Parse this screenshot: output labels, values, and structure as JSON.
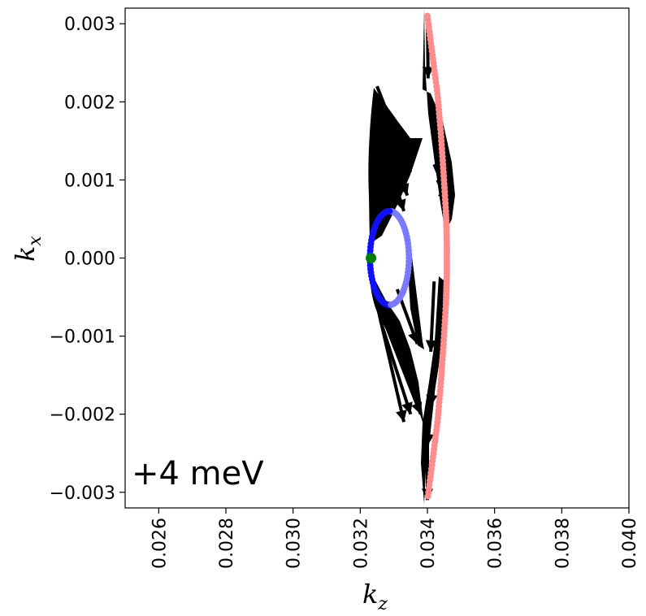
{
  "chart_data": {
    "type": "scatter",
    "xlabel_base": "k",
    "xlabel_sub": "z",
    "ylabel_base": "k",
    "ylabel_sub": "x",
    "xlim": [
      0.025,
      0.04
    ],
    "ylim": [
      -0.0032,
      0.0032
    ],
    "xticks": [
      {
        "value": 0.026,
        "label": "0.026"
      },
      {
        "value": 0.028,
        "label": "0.028"
      },
      {
        "value": 0.03,
        "label": "0.030"
      },
      {
        "value": 0.032,
        "label": "0.032"
      },
      {
        "value": 0.034,
        "label": "0.034"
      },
      {
        "value": 0.036,
        "label": "0.036"
      },
      {
        "value": 0.038,
        "label": "0.038"
      },
      {
        "value": 0.04,
        "label": "0.040"
      }
    ],
    "yticks": [
      {
        "value": 0.003,
        "label": "0.003"
      },
      {
        "value": 0.002,
        "label": "0.002"
      },
      {
        "value": 0.001,
        "label": "0.001"
      },
      {
        "value": 0.0,
        "label": "0.000"
      },
      {
        "value": -0.001,
        "label": "−0.001"
      },
      {
        "value": -0.002,
        "label": "−0.002"
      },
      {
        "value": -0.003,
        "label": "−0.003"
      }
    ],
    "annotation": "+4 meV",
    "grid": false,
    "colors": {
      "blue_dark": "#1010ff",
      "blue_light": "#7a7aff",
      "pink": "#ff8c8c",
      "green": "#008000",
      "arrow": "#000000"
    },
    "series": [
      {
        "kind": "ellipse-points",
        "color_key": "blue_dark",
        "center": [
          0.03287,
          0.0
        ],
        "semi_axes": [
          0.00058,
          0.0006
        ],
        "x": [],
        "y": []
      },
      {
        "kind": "curve-points",
        "color_key": "pink",
        "x": [
          0.034,
          0.03415,
          0.0343,
          0.0344,
          0.03448,
          0.03455,
          0.03458,
          0.03458,
          0.03455,
          0.03448,
          0.0344,
          0.0343,
          0.03415,
          0.034
        ],
        "y": [
          0.0031,
          0.0026,
          0.0021,
          0.0016,
          0.0011,
          0.0006,
          0.0002,
          -0.0002,
          -0.0006,
          -0.0011,
          -0.0016,
          -0.0021,
          -0.0026,
          -0.0031
        ]
      },
      {
        "kind": "point",
        "color_key": "green",
        "x": [
          0.03232
        ],
        "y": [
          0.0
        ]
      }
    ],
    "arrows": [
      {
        "x": 0.0325,
        "y": 0.0022,
        "dx": 0.001,
        "dy": -0.0011
      },
      {
        "x": 0.0326,
        "y": 0.0018,
        "dx": 0.0008,
        "dy": -0.001
      },
      {
        "x": 0.0327,
        "y": 0.0014,
        "dx": 0.0006,
        "dy": -0.0008
      },
      {
        "x": 0.0324,
        "y": 0.001,
        "dx": 0.0003,
        "dy": -0.0004
      },
      {
        "x": 0.0325,
        "y": -0.0006,
        "dx": 0.0008,
        "dy": -0.0015
      },
      {
        "x": 0.0326,
        "y": -0.0008,
        "dx": 0.0009,
        "dy": -0.0012
      },
      {
        "x": 0.0328,
        "y": -0.0009,
        "dx": 0.001,
        "dy": -0.0011
      },
      {
        "x": 0.0331,
        "y": -0.0004,
        "dx": 0.0006,
        "dy": -0.0007
      },
      {
        "x": 0.034,
        "y": 0.0031,
        "dx": 2e-05,
        "dy": -0.0008
      },
      {
        "x": 0.0341,
        "y": 0.002,
        "dx": 0.0003,
        "dy": -0.0005
      },
      {
        "x": 0.0342,
        "y": 0.0012,
        "dx": 0.0004,
        "dy": -0.0004
      },
      {
        "x": 0.0343,
        "y": 0.001,
        "dx": 0.0003,
        "dy": -0.0003
      },
      {
        "x": 0.0342,
        "y": -0.0003,
        "dx": -0.0001,
        "dy": -0.0009
      },
      {
        "x": 0.0343,
        "y": -0.0009,
        "dx": -0.0002,
        "dy": -0.001
      },
      {
        "x": 0.0342,
        "y": -0.0016,
        "dx": -0.0002,
        "dy": -0.0008
      },
      {
        "x": 0.034,
        "y": -0.0024,
        "dx": 0.0,
        "dy": -0.0007
      }
    ]
  }
}
